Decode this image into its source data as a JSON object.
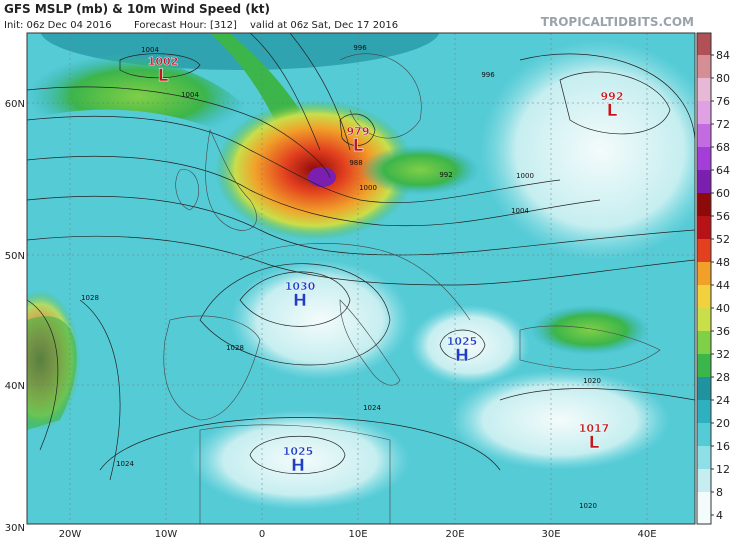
{
  "header": {
    "title": "GFS MSLP (mb) & 10m Wind Speed (kt)",
    "init": "Init: 06z Dec 04 2016",
    "forecast_hour": "Forecast Hour: [312]",
    "valid": "valid at 06z Sat, Dec 17 2016",
    "site": "TROPICALTIDBITS.COM"
  },
  "colorbar": {
    "ticks": [
      4,
      8,
      12,
      16,
      20,
      24,
      28,
      32,
      36,
      40,
      44,
      48,
      52,
      56,
      60,
      64,
      68,
      72,
      76,
      80,
      84
    ],
    "colors": [
      "#f4fbfb",
      "#c6eef0",
      "#8fe0e6",
      "#55cbd6",
      "#2fb0be",
      "#1f939f",
      "#3cb54a",
      "#7fcf47",
      "#c9df4a",
      "#f2d13e",
      "#f1a12a",
      "#e2401f",
      "#b81219",
      "#8e0a0a",
      "#7b1fb0",
      "#a33ed8",
      "#c36be0",
      "#e0a0e4",
      "#e7b9d6",
      "#d58e94",
      "#b25058"
    ]
  },
  "latitudes": [
    "60N",
    "50N",
    "40N",
    "30N"
  ],
  "longitudes": [
    "20W",
    "10W",
    "0",
    "10E",
    "20E",
    "30E",
    "40E"
  ],
  "centers": [
    {
      "type": "L",
      "pressure": 1002
    },
    {
      "type": "L",
      "pressure": 979
    },
    {
      "type": "L",
      "pressure": 992
    },
    {
      "type": "H",
      "pressure": 1030
    },
    {
      "type": "H",
      "pressure": 1025
    },
    {
      "type": "H",
      "pressure": 1025
    },
    {
      "type": "L",
      "pressure": 1017
    }
  ],
  "isobar_labels": [
    1004,
    996,
    1004,
    996,
    988,
    1000,
    992,
    1000,
    1004,
    1028,
    1028,
    1024,
    1024,
    1020,
    1020
  ]
}
